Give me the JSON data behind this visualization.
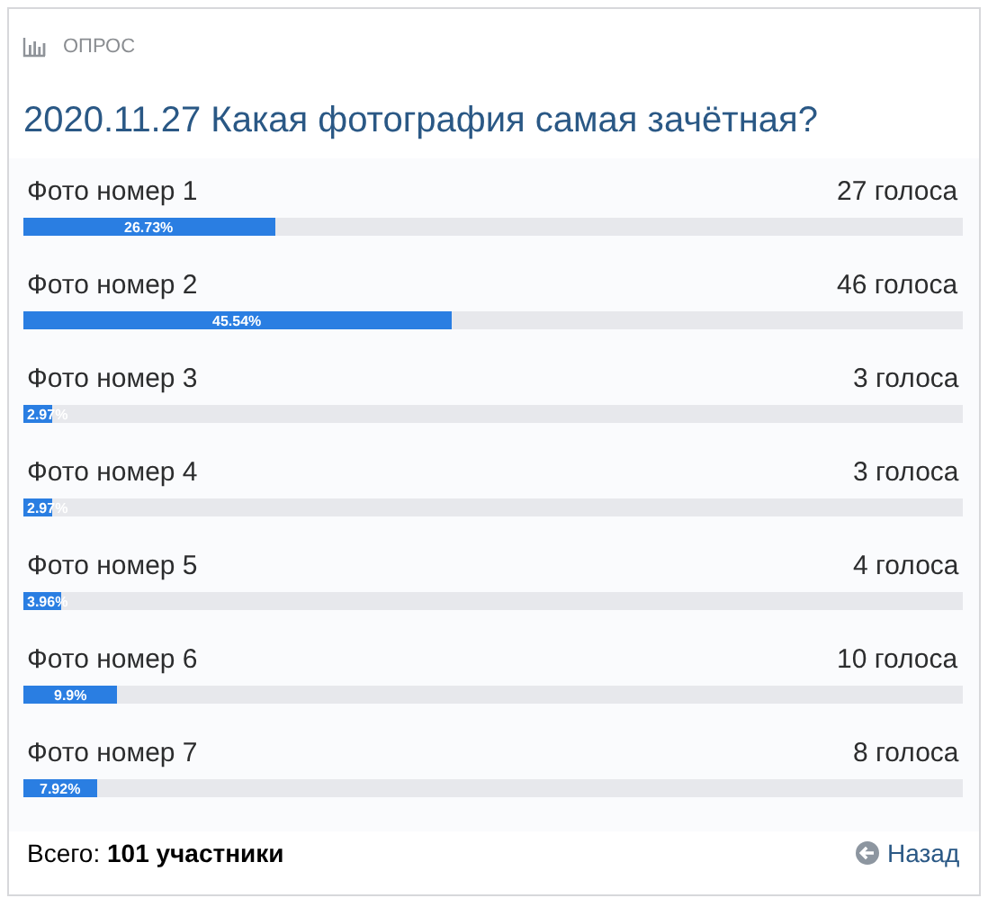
{
  "chart_data": {
    "type": "bar",
    "orientation": "horizontal",
    "title": "2020.11.27 Какая фотография самая зачётная?",
    "categories": [
      "Фото номер 1",
      "Фото номер 2",
      "Фото номер 3",
      "Фото номер 4",
      "Фото номер 5",
      "Фото номер 6",
      "Фото номер 7"
    ],
    "values": [
      26.73,
      45.54,
      2.97,
      2.97,
      3.96,
      9.9,
      7.92
    ],
    "value_labels": [
      "26.73%",
      "45.54%",
      "2.97%",
      "2.97%",
      "3.96%",
      "9.9%",
      "7.92%"
    ],
    "color": "#2a7ee2",
    "xlim": [
      0,
      100
    ],
    "tick_labels": "y",
    "annotations": [
      "ОПРОС",
      "27 голоса",
      "46 голоса",
      "3 голоса",
      "3 голоса",
      "4 голоса",
      "10 голоса",
      "8 голоса",
      "Всего: 101 участники",
      "Назад"
    ]
  }
}
